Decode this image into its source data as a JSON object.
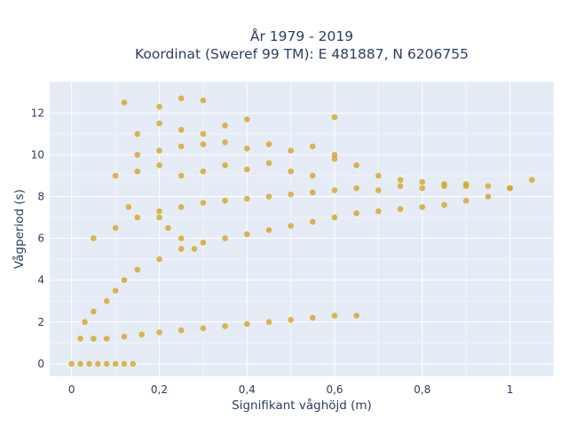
{
  "chart_data": {
    "type": "scatter",
    "title_lines": [
      "År 1979 - 2019",
      "Koordinat (Sweref 99 TM): E 481887, N 6206755"
    ],
    "xlabel": "Signifikant våghöjd (m)",
    "ylabel": "Vågperiod (s)",
    "xlim": [
      -0.05,
      1.1
    ],
    "ylim": [
      -0.6,
      13.5
    ],
    "x_ticks": [
      0,
      0.2,
      0.4,
      0.6,
      0.8,
      1
    ],
    "x_tick_labels": [
      "0",
      "0,2",
      "0,4",
      "0,6",
      "0,8",
      "1"
    ],
    "y_ticks": [
      0,
      2,
      4,
      6,
      8,
      10,
      12
    ],
    "y_tick_labels": [
      "0",
      "2",
      "4",
      "6",
      "8",
      "10",
      "12"
    ],
    "grid": true,
    "legend": "none",
    "marker_color": "#d4a521",
    "series": [
      {
        "x": [
          0.0,
          0.02,
          0.04,
          0.06,
          0.08,
          0.1,
          0.12,
          0.14,
          0.02,
          0.05,
          0.08,
          0.12,
          0.16,
          0.2,
          0.25,
          0.3,
          0.35,
          0.4,
          0.45,
          0.5,
          0.55,
          0.6,
          0.65,
          0.03,
          0.05,
          0.08,
          0.1,
          0.12,
          0.15,
          0.2,
          0.25,
          0.3,
          0.35,
          0.4,
          0.45,
          0.5,
          0.55,
          0.6,
          0.65,
          0.7,
          0.75,
          0.8,
          0.85,
          0.9,
          0.95,
          1.0,
          1.05,
          0.05,
          0.1,
          0.15,
          0.2,
          0.25,
          0.3,
          0.35,
          0.4,
          0.45,
          0.5,
          0.55,
          0.6,
          0.65,
          0.7,
          0.75,
          0.8,
          0.85,
          0.9,
          0.95,
          1.0,
          0.1,
          0.15,
          0.2,
          0.25,
          0.3,
          0.35,
          0.4,
          0.45,
          0.5,
          0.55,
          0.6,
          0.65,
          0.7,
          0.75,
          0.8,
          0.85,
          0.9,
          0.15,
          0.2,
          0.25,
          0.3,
          0.35,
          0.4,
          0.45,
          0.5,
          0.55,
          0.6,
          0.15,
          0.2,
          0.25,
          0.3,
          0.35,
          0.4,
          0.6,
          0.12,
          0.2,
          0.25,
          0.3,
          0.13,
          0.2,
          0.22,
          0.25,
          0.28
        ],
        "y": [
          0.0,
          0.0,
          0.0,
          0.0,
          0.0,
          0.0,
          0.0,
          0.0,
          1.2,
          1.2,
          1.2,
          1.3,
          1.4,
          1.5,
          1.6,
          1.7,
          1.8,
          1.9,
          2.0,
          2.1,
          2.2,
          2.3,
          2.3,
          2.0,
          2.5,
          3.0,
          3.5,
          4.0,
          4.5,
          5.0,
          5.5,
          5.8,
          6.0,
          6.2,
          6.4,
          6.6,
          6.8,
          7.0,
          7.2,
          7.3,
          7.4,
          7.5,
          7.6,
          7.8,
          8.0,
          8.4,
          8.8,
          6.0,
          6.5,
          7.0,
          7.3,
          7.5,
          7.7,
          7.8,
          7.9,
          8.0,
          8.1,
          8.2,
          8.3,
          8.4,
          8.3,
          8.5,
          8.4,
          8.5,
          8.6,
          8.5,
          8.4,
          9.0,
          9.2,
          9.5,
          9.0,
          9.2,
          9.5,
          9.3,
          9.6,
          9.2,
          9.0,
          9.8,
          9.5,
          9.0,
          8.8,
          8.7,
          8.6,
          8.5,
          10.0,
          10.2,
          10.4,
          10.5,
          10.6,
          10.3,
          10.5,
          10.2,
          10.4,
          10.0,
          11.0,
          11.5,
          11.2,
          11.0,
          11.4,
          11.7,
          11.8,
          12.5,
          12.3,
          12.7,
          12.6,
          7.5,
          7.0,
          6.5,
          6.0,
          5.5
        ]
      }
    ]
  }
}
